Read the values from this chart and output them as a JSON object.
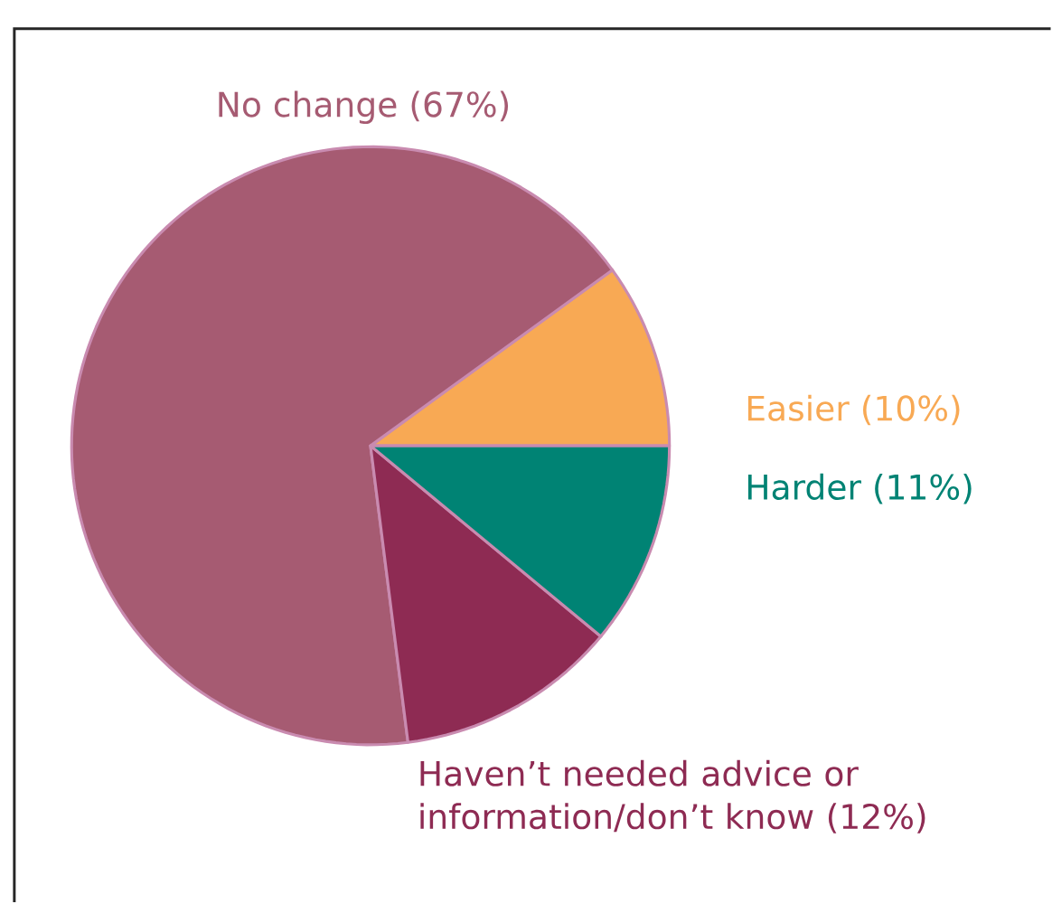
{
  "chart_data": {
    "type": "pie",
    "categories": [
      "Easier",
      "No change",
      "Haven’t needed advice or information/don’t know",
      "Harder"
    ],
    "values": [
      10,
      67,
      12,
      11
    ],
    "value_labels": [
      "(10%)",
      "(67%)",
      "(12%)",
      "(11%)"
    ],
    "colors": [
      "#f8a954",
      "#a65b72",
      "#8e2b53",
      "#008374"
    ]
  }
}
